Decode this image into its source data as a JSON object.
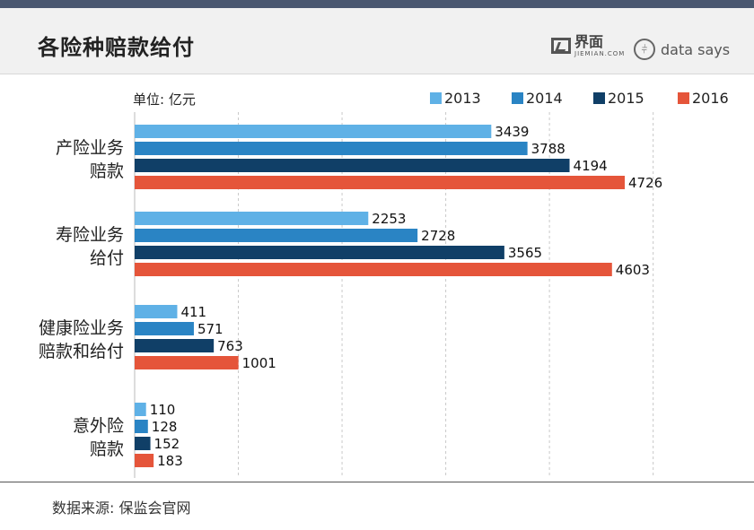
{
  "header": {
    "title": "各险种赔款给付",
    "brand_cn": "界面",
    "brand_en": "JIEMIAN.COM",
    "partner": "data says"
  },
  "footer": {
    "source": "数据来源: 保监会官网"
  },
  "colors": {
    "2013": "#5fb1e6",
    "2014": "#2a84c4",
    "2015": "#103f67",
    "2016": "#e5553a"
  },
  "chart_data": {
    "type": "bar",
    "orientation": "horizontal",
    "unit_label": "单位: 亿元",
    "categories": [
      [
        "产险业务",
        "赔款"
      ],
      [
        "寿险业务",
        "给付"
      ],
      [
        "健康险业务",
        "赔款和给付"
      ],
      [
        "意外险",
        "赔款"
      ]
    ],
    "series": [
      {
        "name": "2013",
        "values": [
          3439,
          2253,
          411,
          110
        ]
      },
      {
        "name": "2014",
        "values": [
          3788,
          2728,
          571,
          128
        ]
      },
      {
        "name": "2015",
        "values": [
          4194,
          3565,
          763,
          152
        ]
      },
      {
        "name": "2016",
        "values": [
          4726,
          4603,
          1001,
          183
        ]
      }
    ],
    "xlim": [
      0,
      5000
    ],
    "grid": "vertical dashed",
    "legend": "top-right"
  }
}
